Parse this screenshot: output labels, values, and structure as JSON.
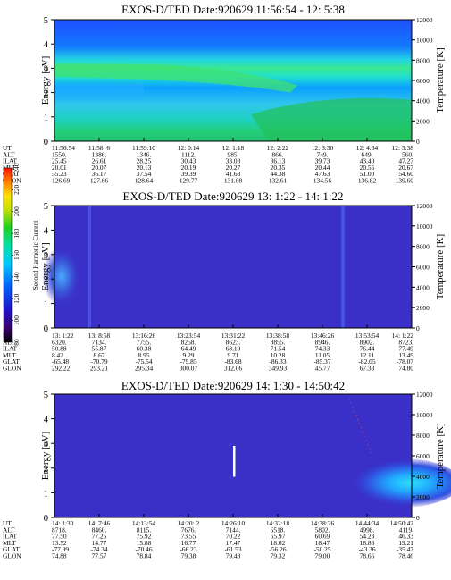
{
  "chart_data": [
    {
      "type": "heatmap",
      "title": "EXOS-D/TED   Date:920629  11:56:54 - 12: 5:38",
      "ylabel": "Energy [eV]",
      "ylabel_right": "Temperature [K]",
      "ylim": [
        0,
        5
      ],
      "yticks": [
        "0",
        "1",
        "2",
        "3",
        "4",
        "5"
      ],
      "ylim_right": [
        0,
        12000
      ],
      "yticks_right": [
        "0",
        "2000",
        "4000",
        "6000",
        "8000",
        "10000",
        "12000"
      ],
      "orbit_rows": [
        "UT",
        "ALT",
        "ILAT",
        "MLT",
        "GLAT",
        "GLON"
      ],
      "orbit_columns": [
        [
          "11:56:54",
          "1550.",
          "25.45",
          "20.01",
          "35.23",
          "126.69"
        ],
        [
          "11:58: 6",
          "1386.",
          "26.61",
          "20.07",
          "36.17",
          "127.66"
        ],
        [
          "11:59:10",
          "1346.",
          "28.25",
          "20.13",
          "37.54",
          "128.64"
        ],
        [
          "12: 0:14",
          "1112.",
          "30.43",
          "20.19",
          "39.39",
          "129.77"
        ],
        [
          "12: 1:18",
          "985.",
          "33.08",
          "20.27",
          "41.68",
          "131.08"
        ],
        [
          "12: 2:22",
          "866.",
          "36.13",
          "20.35",
          "44.38",
          "132.61"
        ],
        [
          "12: 3:30",
          "749.",
          "39.73",
          "20.44",
          "47.63",
          "134.56"
        ],
        [
          "12: 4:34",
          "649.",
          "43.40",
          "20.55",
          "51.00",
          "136.82"
        ],
        [
          "12: 5:38",
          "560.",
          "47.27",
          "20.67",
          "54.60",
          "139.60"
        ]
      ]
    },
    {
      "type": "heatmap",
      "title": "EXOS-D/TED   Date:920629  13: 1:22 - 14: 1:22",
      "ylabel": "Energy [eV]",
      "ylabel_right": "Temperature [K]",
      "ylim": [
        0,
        5
      ],
      "yticks": [
        "0",
        "1",
        "2",
        "3",
        "4",
        "5"
      ],
      "ylim_right": [
        0,
        12000
      ],
      "yticks_right": [
        "0",
        "2000",
        "4000",
        "6000",
        "8000",
        "10000",
        "12000"
      ],
      "colorbar": {
        "label": "Second Harmonic Current",
        "range": [
          80,
          240
        ],
        "ticks": [
          "80",
          "100",
          "120",
          "140",
          "160",
          "180",
          "200",
          "220",
          "240"
        ]
      },
      "orbit_rows": [
        "UT",
        "ALT",
        "ILAT",
        "MLT",
        "GLAT",
        "GLON"
      ],
      "orbit_columns": [
        [
          "13: 1:22",
          "6320.",
          "50.88",
          "8.42",
          "-65.48",
          "292.22"
        ],
        [
          "13: 8:58",
          "7134.",
          "55.87",
          "8.67",
          "-70.79",
          "293.21"
        ],
        [
          "13:16:26",
          "7755.",
          "60.38",
          "8.95",
          "-75.54",
          "295.34"
        ],
        [
          "13:23:54",
          "8258.",
          "64.49",
          "9.29",
          "-79.85",
          "300.07"
        ],
        [
          "13:31:22",
          "8623.",
          "68.19",
          "9.71",
          "-83.68",
          "312.06"
        ],
        [
          "13:38:58",
          "8855.",
          "71.54",
          "10.28",
          "-86.33",
          "349.93"
        ],
        [
          "13:46:26",
          "8946.",
          "74.33",
          "11.05",
          "-85.37",
          "45.77"
        ],
        [
          "13:53:54",
          "8902.",
          "76.44",
          "12.11",
          "-82.05",
          "67.33"
        ],
        [
          "14: 1:22",
          "8723.",
          "77.49",
          "13.49",
          "-78.07",
          "74.80"
        ]
      ]
    },
    {
      "type": "heatmap",
      "title": "EXOS-D/TED   Date:920629  14: 1:30 - 14:50:42",
      "ylabel": "Energy [eV]",
      "ylabel_right": "Temperature [K]",
      "ylim": [
        0,
        5
      ],
      "yticks": [
        "0",
        "1",
        "2",
        "3",
        "4",
        "5"
      ],
      "ylim_right": [
        0,
        12000
      ],
      "yticks_right": [
        "0",
        "2000",
        "4000",
        "6000",
        "8000",
        "10000",
        "12000"
      ],
      "orbit_rows": [
        "UT",
        "ALT",
        "ILAT",
        "MLT",
        "GLAT",
        "GLON"
      ],
      "orbit_columns": [
        [
          "14: 1:30",
          "8718.",
          "77.50",
          "13.52",
          "-77.99",
          "74.88"
        ],
        [
          "14: 7:46",
          "8460.",
          "77.25",
          "14.77",
          "-74.34",
          "77.57"
        ],
        [
          "14:13:54",
          "8115.",
          "75.92",
          "15.88",
          "-70.46",
          "78.84"
        ],
        [
          "14:20: 2",
          "7676.",
          "73.55",
          "16.77",
          "-66.23",
          "79.38"
        ],
        [
          "14:26:10",
          "7144.",
          "70.22",
          "17.47",
          "-61.53",
          "79.48"
        ],
        [
          "14:32:18",
          "6518.",
          "65.97",
          "18.02",
          "-56.26",
          "79.32"
        ],
        [
          "14:38:26",
          "5802.",
          "60.69",
          "18.47",
          "-50.25",
          "79.00"
        ],
        [
          "14:44:34",
          "4998.",
          "54.23",
          "18.86",
          "-43.36",
          "78.66"
        ],
        [
          "14:50:42",
          "4119.",
          "46.33",
          "19.21",
          "-35.47",
          "78.46"
        ]
      ]
    }
  ]
}
